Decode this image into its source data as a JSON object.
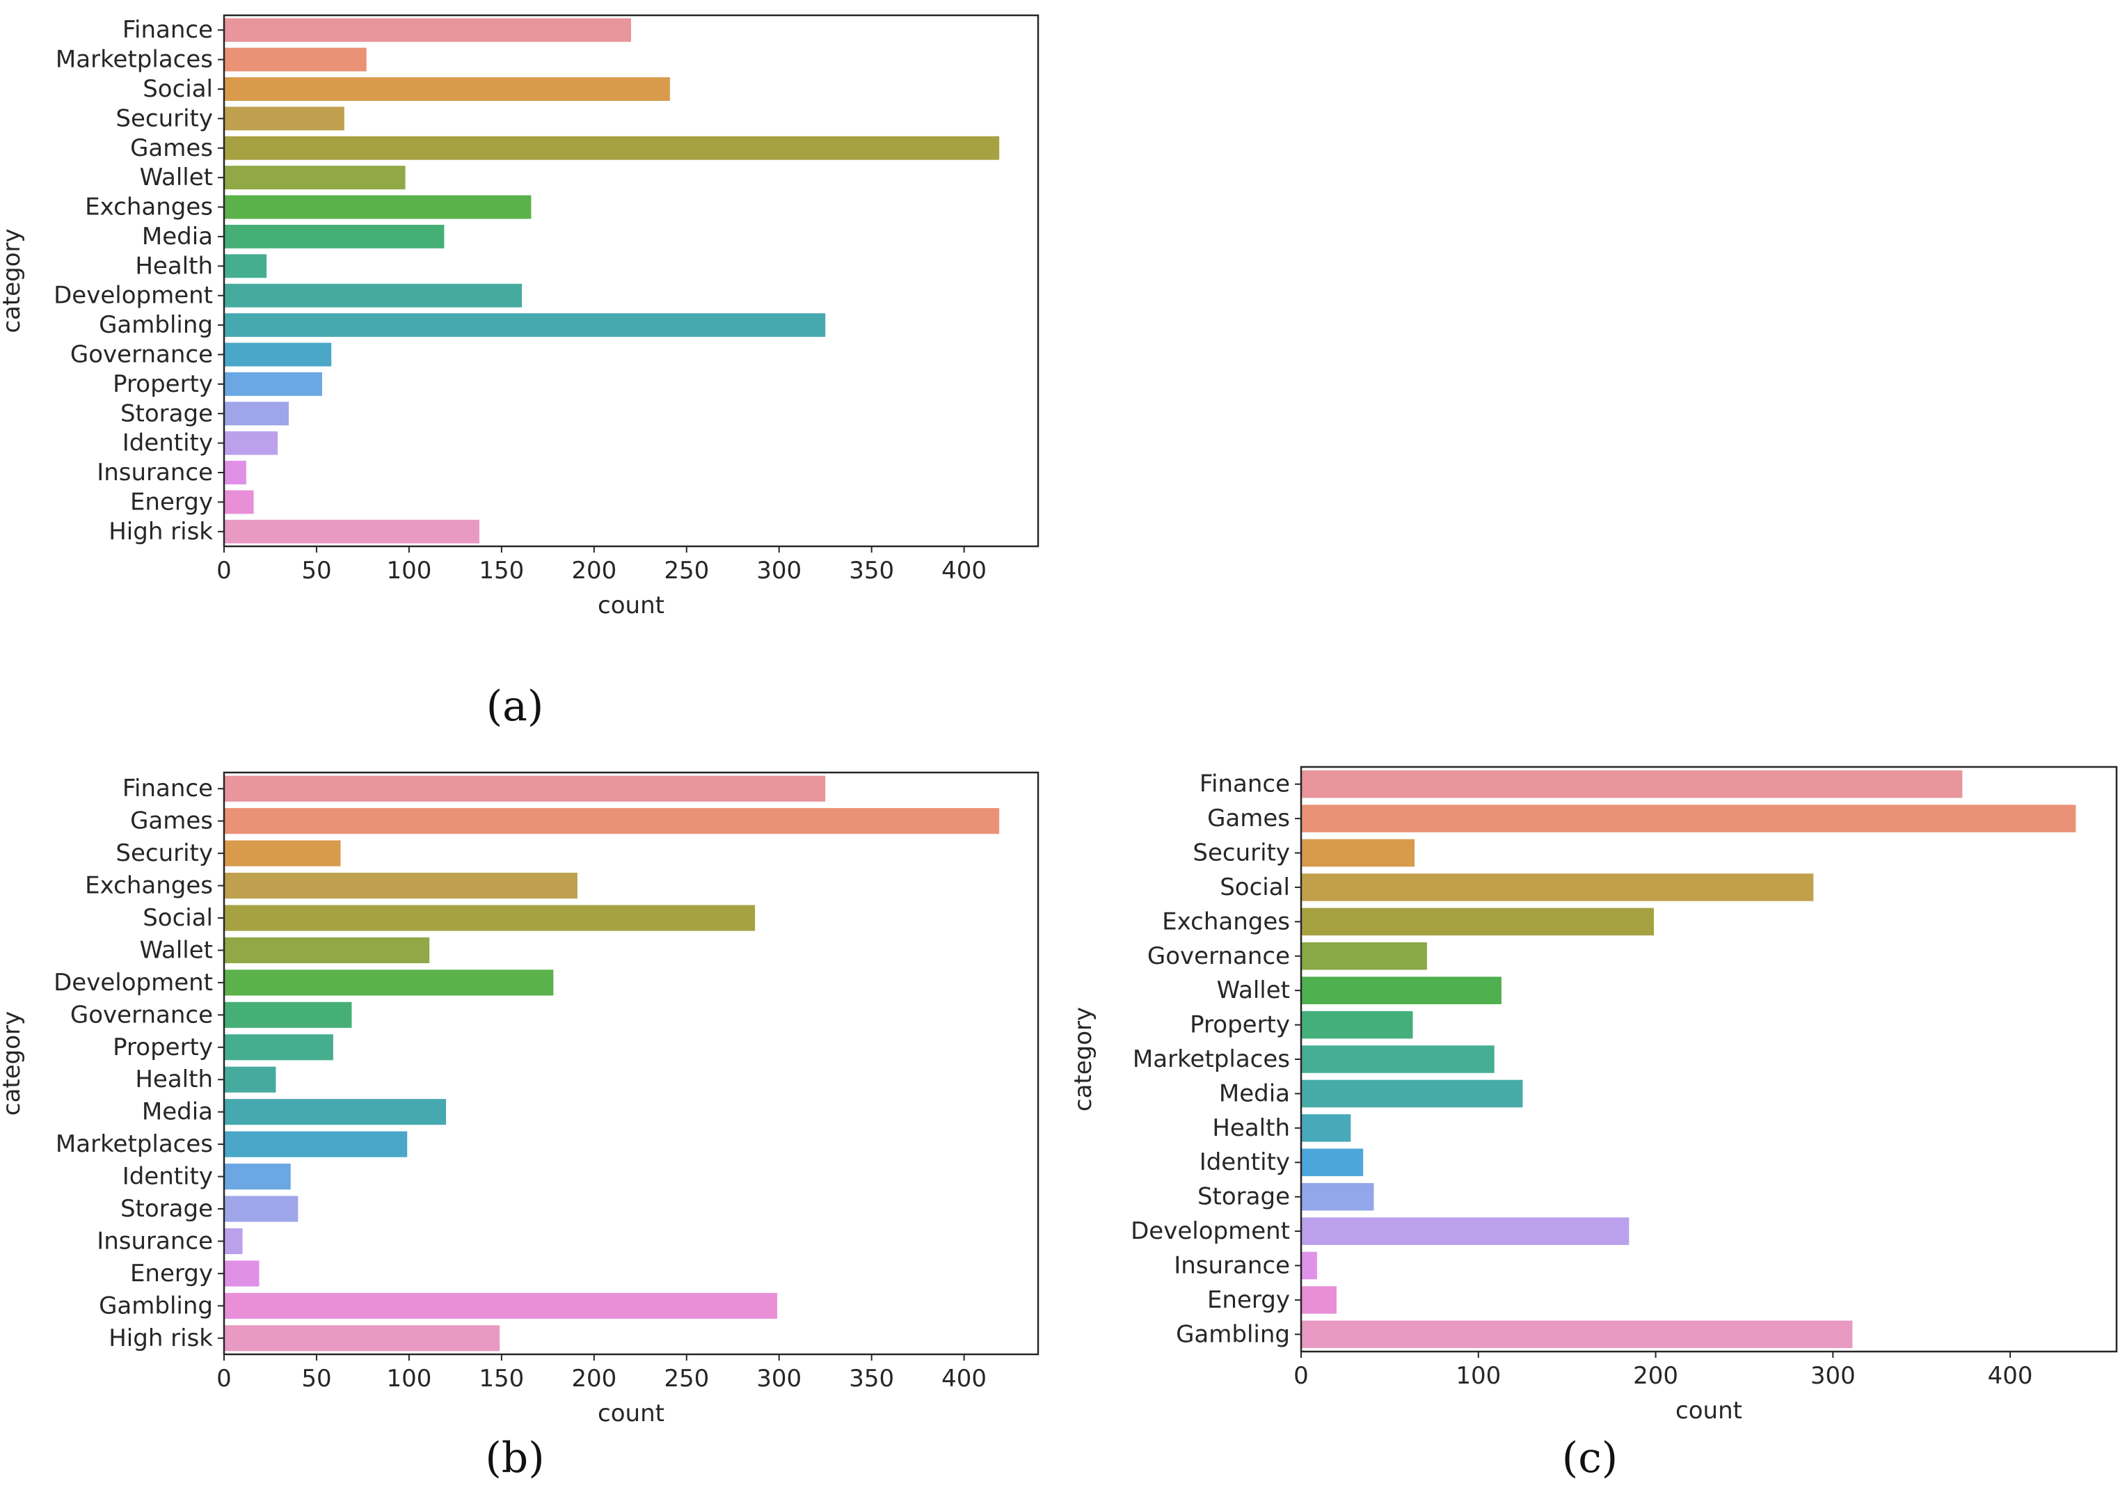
{
  "chart_data": [
    {
      "type": "bar",
      "orientation": "horizontal",
      "panel": "a",
      "caption": "(a)",
      "xlabel": "count",
      "ylabel": "category",
      "xlim": [
        0,
        440
      ],
      "xticks": [
        0,
        50,
        100,
        150,
        200,
        250,
        300,
        350,
        400
      ],
      "categories": [
        "Finance",
        "Marketplaces",
        "Social",
        "Security",
        "Games",
        "Wallet",
        "Exchanges",
        "Media",
        "Health",
        "Development",
        "Gambling",
        "Governance",
        "Property",
        "Storage",
        "Identity",
        "Insurance",
        "Energy",
        "High risk"
      ],
      "values": [
        220,
        77,
        241,
        65,
        419,
        98,
        166,
        119,
        23,
        161,
        325,
        58,
        53,
        35,
        29,
        12,
        16,
        138
      ],
      "colors": [
        "#e8959c",
        "#ea9276",
        "#d89a4b",
        "#bea04e",
        "#a6a242",
        "#91a846",
        "#5bb14a",
        "#45af76",
        "#45ae8e",
        "#46ab9e",
        "#47a9b0",
        "#4aa7c8",
        "#6aa7e3",
        "#9ea6e9",
        "#bba1ec",
        "#e090e6",
        "#e98fd8",
        "#e89ac2"
      ]
    },
    {
      "type": "bar",
      "orientation": "horizontal",
      "panel": "b",
      "caption": "(b)",
      "xlabel": "count",
      "ylabel": "category",
      "xlim": [
        0,
        440
      ],
      "xticks": [
        0,
        50,
        100,
        150,
        200,
        250,
        300,
        350,
        400
      ],
      "categories": [
        "Finance",
        "Games",
        "Security",
        "Exchanges",
        "Social",
        "Wallet",
        "Development",
        "Governance",
        "Property",
        "Health",
        "Media",
        "Marketplaces",
        "Identity",
        "Storage",
        "Insurance",
        "Energy",
        "Gambling",
        "High risk"
      ],
      "values": [
        325,
        419,
        63,
        191,
        287,
        111,
        178,
        69,
        59,
        28,
        120,
        99,
        36,
        40,
        10,
        19,
        299,
        149
      ],
      "colors": [
        "#e8959c",
        "#ea9276",
        "#d89a4b",
        "#bea04e",
        "#a6a242",
        "#91a846",
        "#5bb14a",
        "#45af76",
        "#45ae8e",
        "#46ab9e",
        "#47a9b0",
        "#4aa7c8",
        "#6aa7e3",
        "#9ea6e9",
        "#bba1ec",
        "#e090e6",
        "#e98fd8",
        "#e89ac2"
      ]
    },
    {
      "type": "bar",
      "orientation": "horizontal",
      "panel": "c",
      "caption": "(c)",
      "xlabel": "count",
      "ylabel": "category",
      "xlim": [
        0,
        460
      ],
      "xticks": [
        0,
        100,
        200,
        300,
        400
      ],
      "categories": [
        "Finance",
        "Games",
        "Security",
        "Social",
        "Exchanges",
        "Governance",
        "Wallet",
        "Property",
        "Marketplaces",
        "Media",
        "Health",
        "Identity",
        "Storage",
        "Development",
        "Insurance",
        "Energy",
        "Gambling"
      ],
      "values": [
        373,
        437,
        64,
        289,
        199,
        71,
        113,
        63,
        109,
        125,
        28,
        35,
        41,
        185,
        9,
        20,
        311
      ],
      "colors": [
        "#e8959c",
        "#ea9276",
        "#d89a4b",
        "#c2a04b",
        "#a6a242",
        "#8aa947",
        "#4fb04f",
        "#45af7c",
        "#45ae94",
        "#46aba6",
        "#47a9ba",
        "#4da6da",
        "#92a6ea",
        "#bba1ec",
        "#df93e8",
        "#e88fd6",
        "#e89ac2"
      ]
    }
  ]
}
